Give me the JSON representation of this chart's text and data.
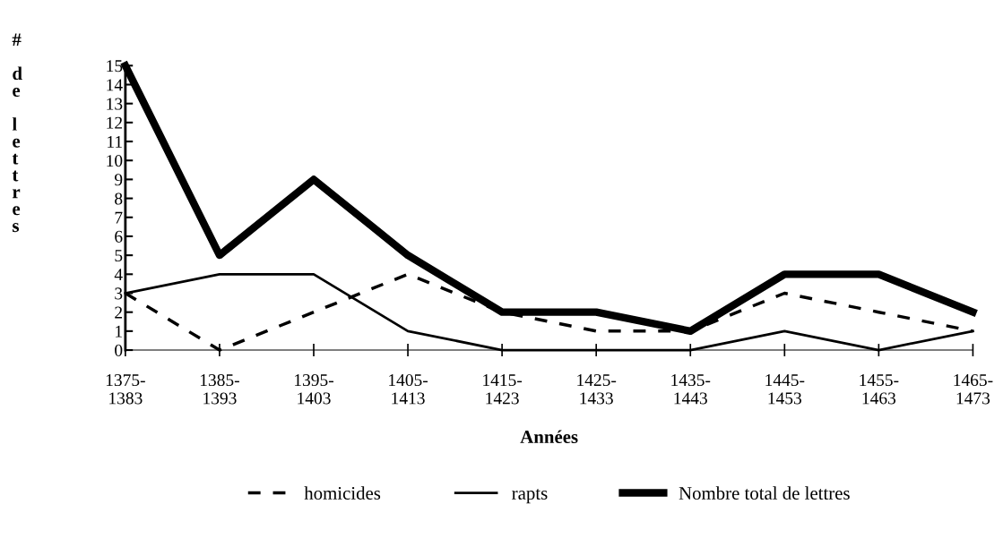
{
  "chart_data": {
    "type": "line",
    "xlabel": "Années",
    "ylabel": "# de lettres",
    "categories": [
      "1375-\n1383",
      "1385-\n1393",
      "1395-\n1403",
      "1405-\n1413",
      "1415-\n1423",
      "1425-\n1433",
      "1435-\n1443",
      "1445-\n1453",
      "1455-\n1463",
      "1465-\n1473"
    ],
    "series": [
      {
        "name": "homicides",
        "color": "#000000",
        "line_style": "dashed",
        "values": [
          3,
          0,
          2,
          4,
          2,
          1,
          1,
          3,
          2,
          1
        ]
      },
      {
        "name": "rapts",
        "color": "#000000",
        "line_style": "solid",
        "values": [
          3,
          4,
          4,
          1,
          0,
          0,
          0,
          1,
          0,
          1
        ]
      },
      {
        "name": "Nombre total de lettres",
        "color": "#000000",
        "line_style": "solid",
        "values": [
          15,
          5,
          9,
          5,
          2,
          2,
          1,
          4,
          4,
          2
        ]
      }
    ],
    "ylim": [
      0,
      15
    ],
    "yticks": [
      0,
      1,
      2,
      3,
      4,
      5,
      6,
      7,
      8,
      9,
      10,
      11,
      12,
      13,
      14,
      15
    ],
    "grid": false,
    "legend": "bottom",
    "marker": "none"
  }
}
